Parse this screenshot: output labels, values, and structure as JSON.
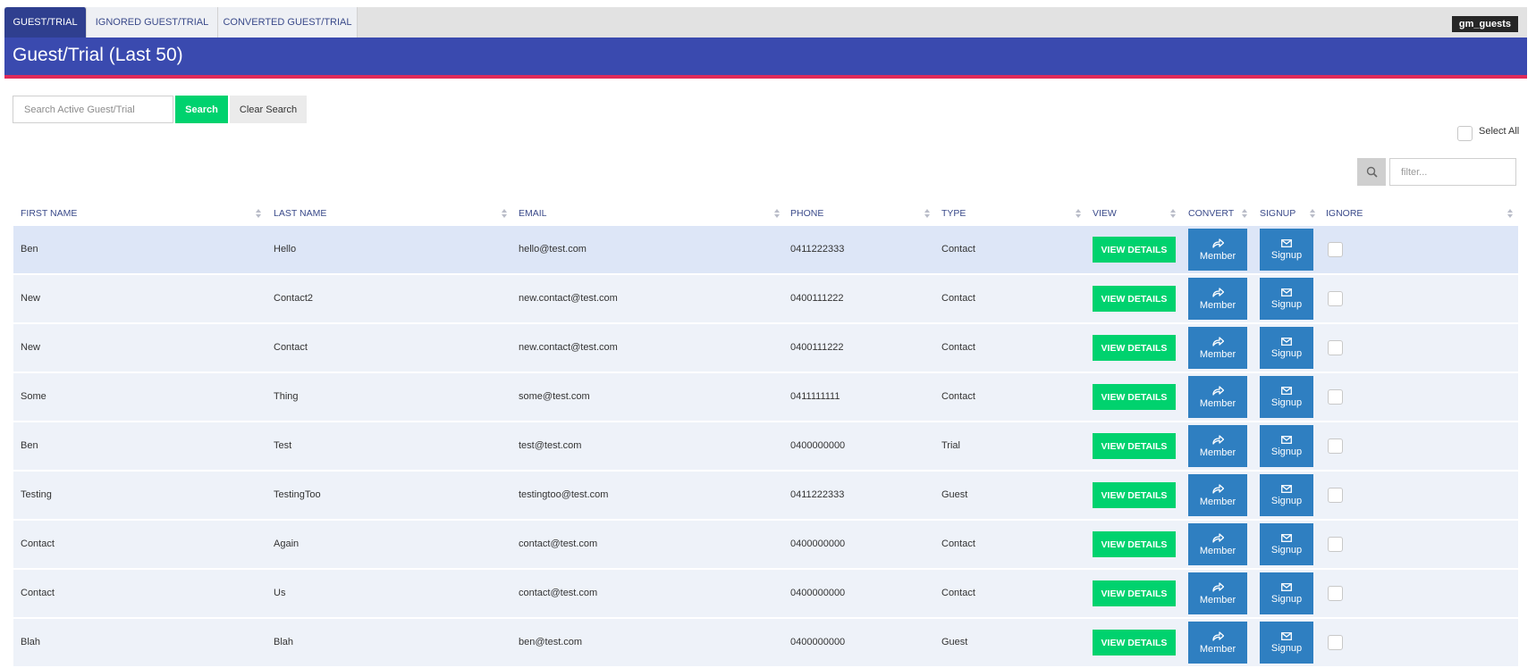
{
  "tabs": [
    {
      "label": "GUEST/TRIAL",
      "active": true
    },
    {
      "label": "IGNORED GUEST/TRIAL",
      "active": false
    },
    {
      "label": "CONVERTED GUEST/TRIAL",
      "active": false
    }
  ],
  "tag": "gm_guests",
  "page_title": "Guest/Trial (Last 50)",
  "search": {
    "placeholder": "Search Active Guest/Trial",
    "value": "",
    "search_label": "Search",
    "clear_label": "Clear Search"
  },
  "select_all_label": "Select All",
  "filter": {
    "placeholder": "filter...",
    "icon": "search-icon"
  },
  "columns": [
    "FIRST NAME",
    "LAST NAME",
    "EMAIL",
    "PHONE",
    "TYPE",
    "VIEW",
    "CONVERT",
    "SIGNUP",
    "IGNORE"
  ],
  "button_labels": {
    "view": "VIEW DETAILS",
    "member": "Member",
    "signup": "Signup"
  },
  "icons": {
    "member": "share-icon",
    "signup": "envelope-icon"
  },
  "colors": {
    "primary_bar": "#3a4aaf",
    "accent_line": "#e02a5a",
    "green": "#00d26e",
    "blue": "#2f7fc1",
    "tab_active": "#2f3f8f"
  },
  "rows": [
    {
      "first": "Ben",
      "last": "Hello",
      "email": "hello@test.com",
      "phone": "0411222333",
      "type": "Contact"
    },
    {
      "first": "New",
      "last": "Contact2",
      "email": "new.contact@test.com",
      "phone": "0400111222",
      "type": "Contact"
    },
    {
      "first": "New",
      "last": "Contact",
      "email": "new.contact@test.com",
      "phone": "0400111222",
      "type": "Contact"
    },
    {
      "first": "Some",
      "last": "Thing",
      "email": "some@test.com",
      "phone": "0411111111",
      "type": "Contact"
    },
    {
      "first": "Ben",
      "last": "Test",
      "email": "test@test.com",
      "phone": "0400000000",
      "type": "Trial"
    },
    {
      "first": "Testing",
      "last": "TestingToo",
      "email": "testingtoo@test.com",
      "phone": "0411222333",
      "type": "Guest"
    },
    {
      "first": "Contact",
      "last": "Again",
      "email": "contact@test.com",
      "phone": "0400000000",
      "type": "Contact"
    },
    {
      "first": "Contact",
      "last": "Us",
      "email": "contact@test.com",
      "phone": "0400000000",
      "type": "Contact"
    },
    {
      "first": "Blah",
      "last": "Blah",
      "email": "ben@test.com",
      "phone": "0400000000",
      "type": "Guest"
    }
  ]
}
